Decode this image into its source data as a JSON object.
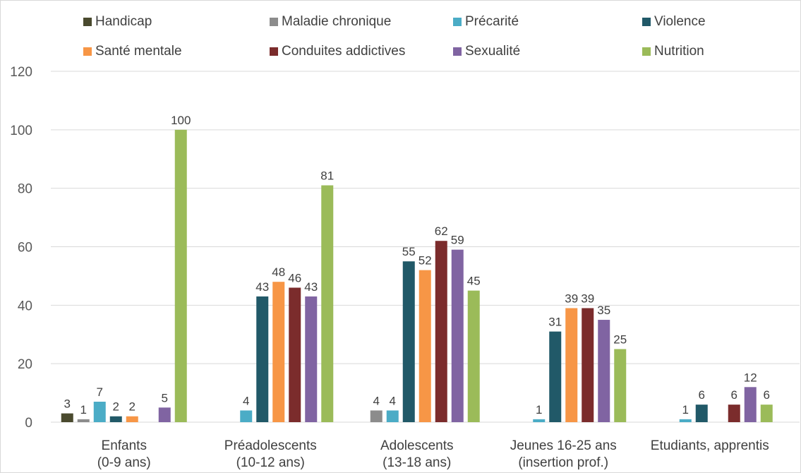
{
  "chart_data": {
    "type": "bar",
    "categories": [
      [
        "Enfants",
        "(0-9 ans)"
      ],
      [
        "Préadolescents",
        "(10-12 ans)"
      ],
      [
        "Adolescents",
        "(13-18 ans)"
      ],
      [
        "Jeunes 16-25 ans",
        "(insertion prof.)"
      ],
      [
        "Etudiants, apprentis"
      ]
    ],
    "series": [
      {
        "name": "Handicap",
        "color": "#4a4a2e",
        "values": [
          3,
          null,
          null,
          null,
          null
        ]
      },
      {
        "name": "Maladie chronique",
        "color": "#8c8c8c",
        "values": [
          1,
          null,
          4,
          null,
          null
        ]
      },
      {
        "name": "Précarité",
        "color": "#4bacc6",
        "values": [
          7,
          4,
          4,
          1,
          1
        ]
      },
      {
        "name": "Violence",
        "color": "#215968",
        "values": [
          2,
          43,
          55,
          31,
          6
        ]
      },
      {
        "name": "Santé mentale",
        "color": "#f79646",
        "values": [
          2,
          48,
          52,
          39,
          0
        ]
      },
      {
        "name": "Conduites addictives",
        "color": "#7b2c2c",
        "values": [
          null,
          46,
          62,
          39,
          6
        ]
      },
      {
        "name": "Sexualité",
        "color": "#8064a2",
        "values": [
          5,
          43,
          59,
          35,
          12
        ]
      },
      {
        "name": "Nutrition",
        "color": "#9bbb59",
        "values": [
          100,
          81,
          45,
          25,
          6
        ]
      }
    ],
    "ylim": [
      0,
      120
    ],
    "yticks": [
      0,
      20,
      40,
      60,
      80,
      100,
      120
    ],
    "grid": true,
    "legend": "top"
  }
}
